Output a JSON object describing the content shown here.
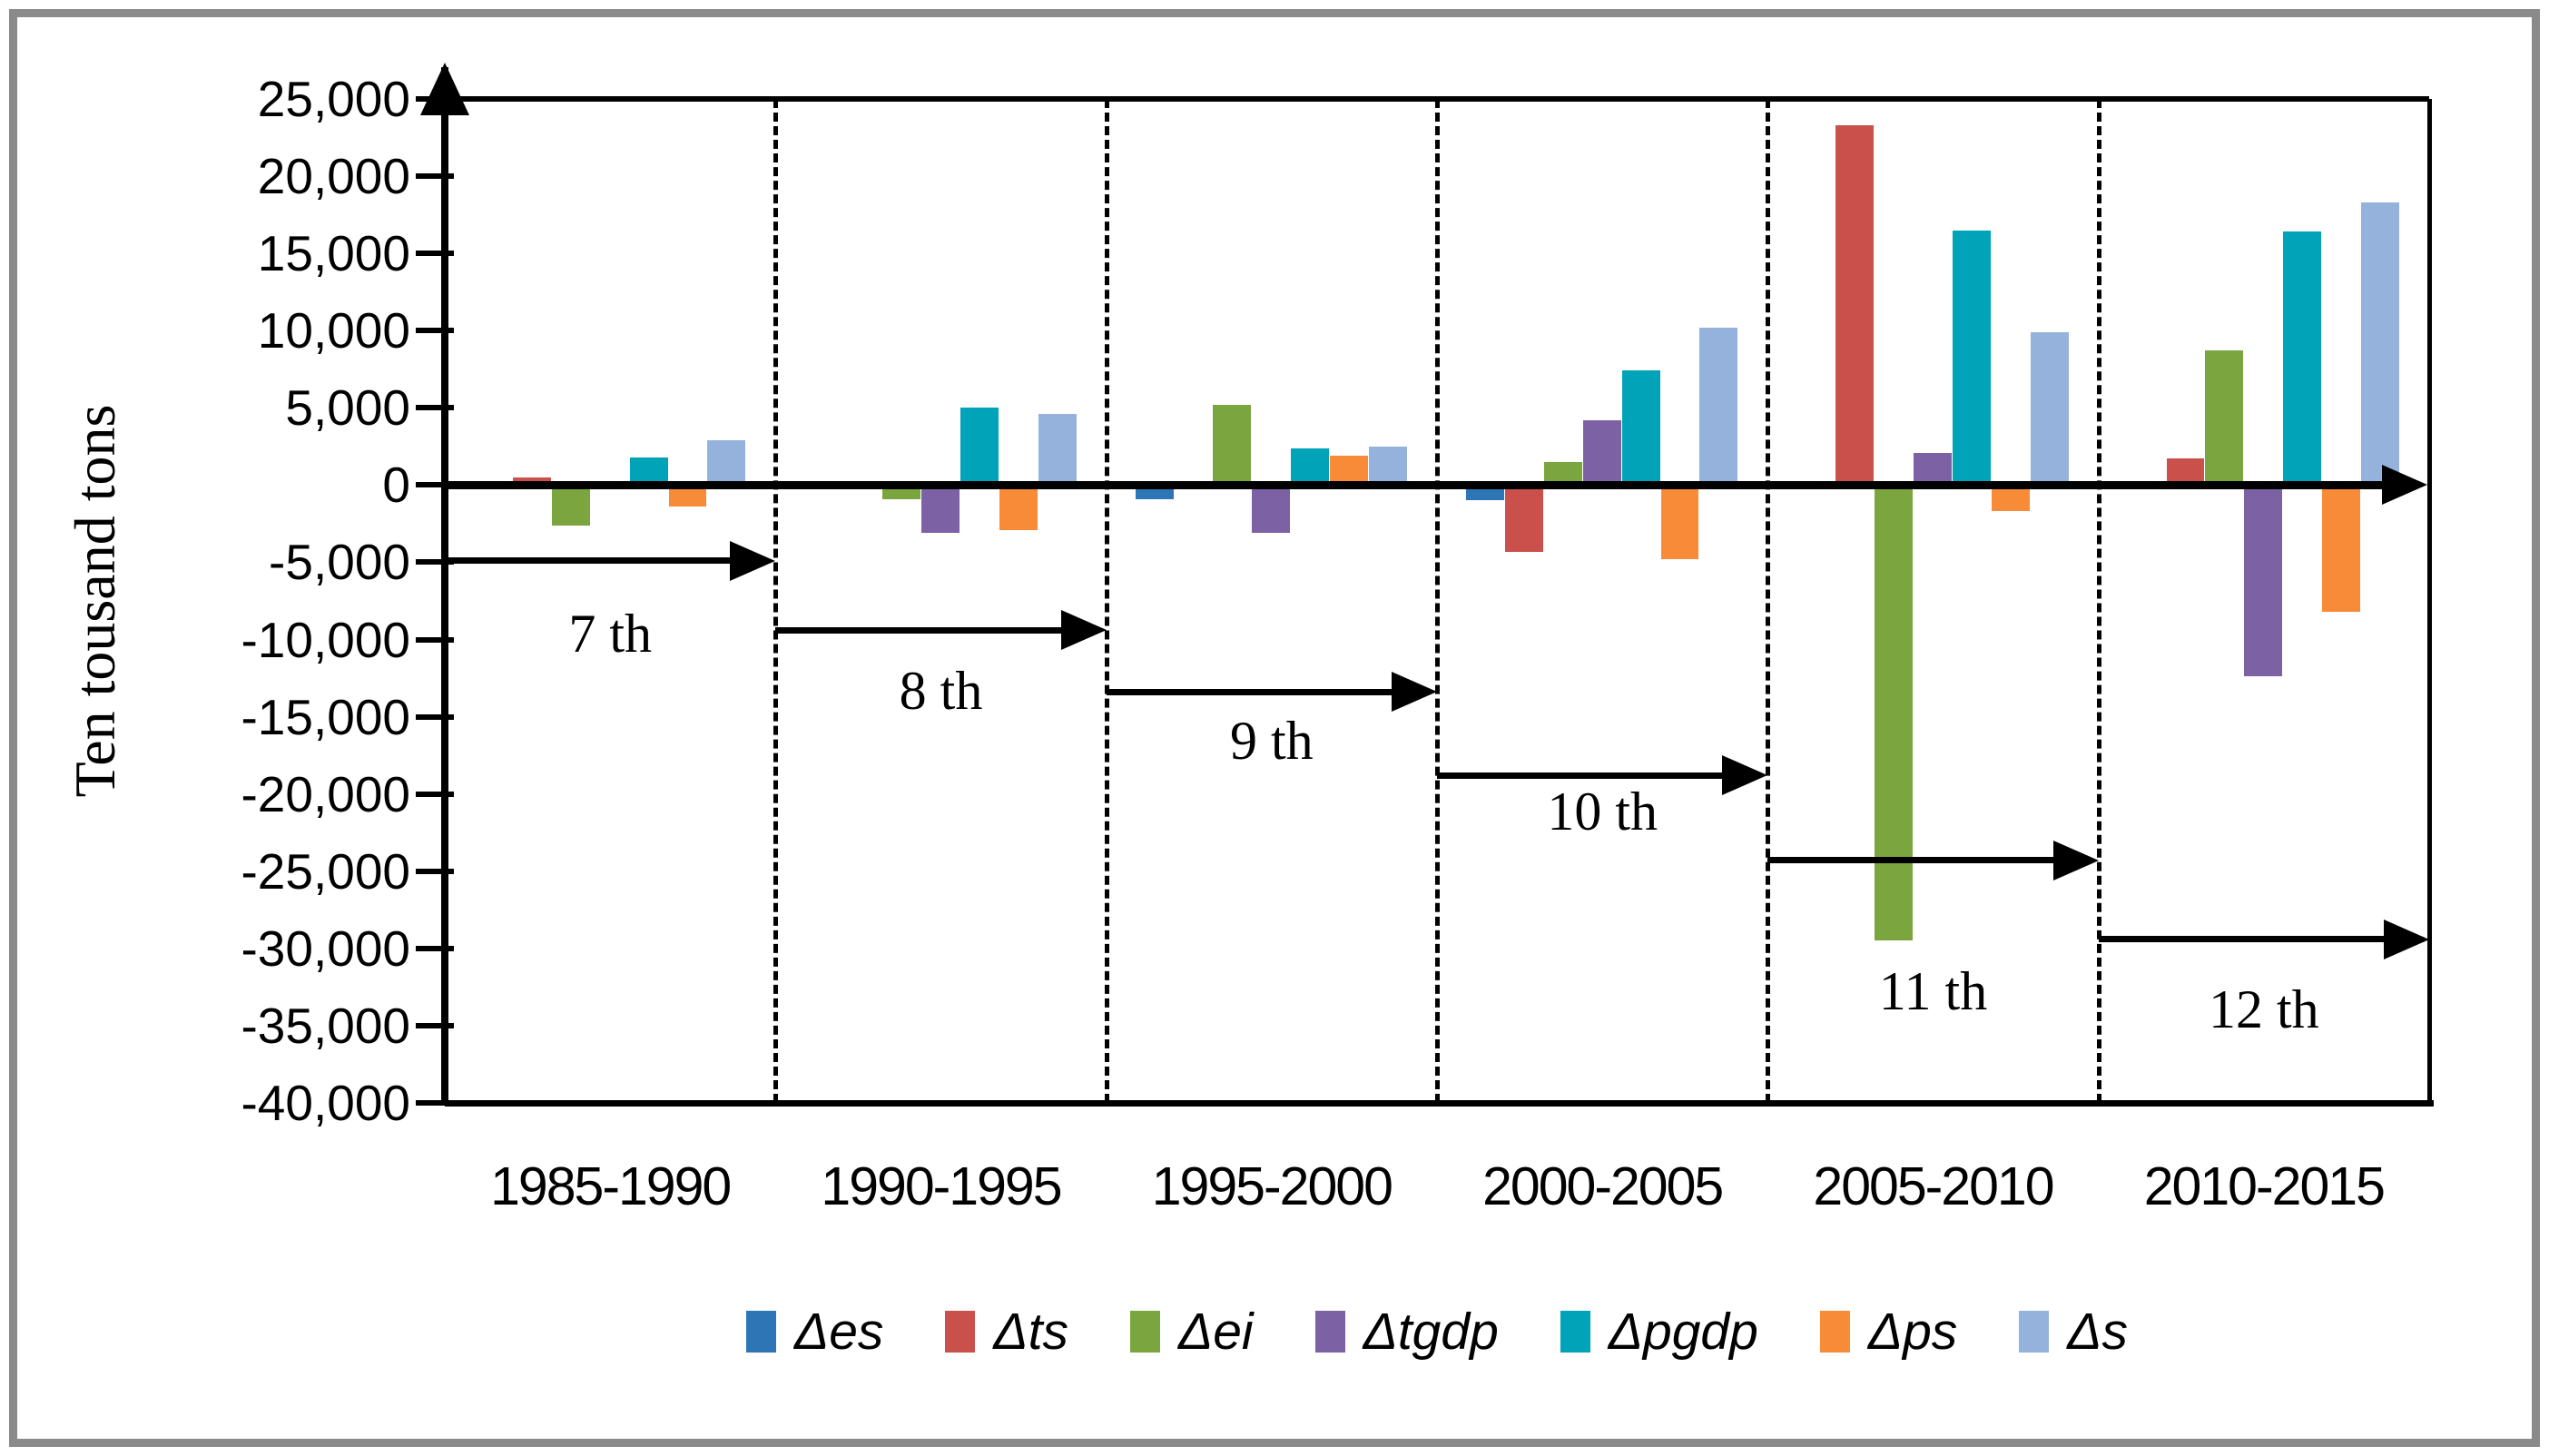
{
  "figure": {
    "y_axis_title": "Ten tousand tons"
  },
  "chart_data": {
    "type": "bar",
    "title": "",
    "xlabel": "",
    "ylabel": "Ten tousand tons",
    "ylim": [
      -40000,
      25000
    ],
    "ytick_step": 5000,
    "y_tick_labels": [
      "25,000",
      "20,000",
      "15,000",
      "10,000",
      "5,000",
      "0",
      "-5,000",
      "-10,000",
      "-15,000",
      "-20,000",
      "-25,000",
      "-30,000",
      "-35,000",
      "-40,000"
    ],
    "grid": "off",
    "legend_position": "bottom",
    "categories": [
      "1985-1990",
      "1990-1995",
      "1995-2000",
      "2000-2005",
      "2005-2010",
      "2010-2015"
    ],
    "series": [
      {
        "name": "Δes",
        "color": "#2E75B6",
        "values": [
          0,
          -150,
          -900,
          -1000,
          0,
          0
        ]
      },
      {
        "name": "Δts",
        "color": "#C9504B",
        "values": [
          500,
          0,
          150,
          -4300,
          23300,
          1700
        ]
      },
      {
        "name": "Δei",
        "color": "#7BA53F",
        "values": [
          -2600,
          -900,
          5200,
          1500,
          -29500,
          8700
        ]
      },
      {
        "name": "Δtgdp",
        "color": "#7C62A5",
        "values": [
          -300,
          -3100,
          -3100,
          4200,
          2100,
          -12400
        ]
      },
      {
        "name": "Δpgdp",
        "color": "#00A3B8",
        "values": [
          1800,
          5000,
          2400,
          7400,
          16500,
          16400
        ]
      },
      {
        "name": "Δps",
        "color": "#F78B38",
        "values": [
          -1400,
          -2900,
          1900,
          -4800,
          -1700,
          -8200
        ]
      },
      {
        "name": "Δs",
        "color": "#94B2DB",
        "values": [
          2900,
          4600,
          2500,
          10200,
          9900,
          18300
        ]
      }
    ],
    "period_arrows": [
      {
        "label": "7 th",
        "value": -4900
      },
      {
        "label": "8 th",
        "value": -9400
      },
      {
        "label": "9 th",
        "value": -13400
      },
      {
        "label": "10 th",
        "value": -18800
      },
      {
        "label": "11 th",
        "value": -24300
      },
      {
        "label": "12 th",
        "value": -29400
      }
    ]
  }
}
